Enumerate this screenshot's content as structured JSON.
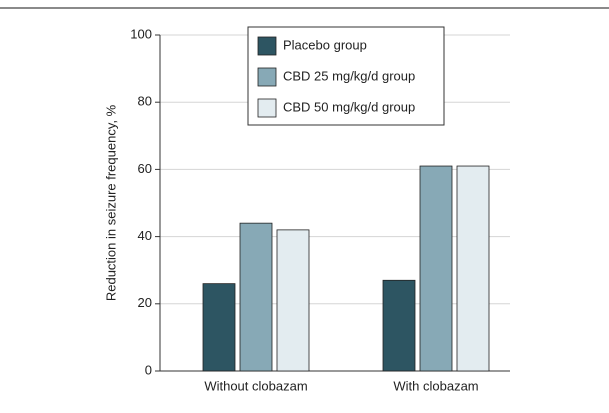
{
  "chart_data": {
    "type": "bar",
    "y_label": "Reduction in seizure frequency, %",
    "categories": [
      "Without clobazam",
      "With clobazam"
    ],
    "series": [
      {
        "name": "Placebo group",
        "color": "#2d5562",
        "values": [
          26,
          27
        ]
      },
      {
        "name": "CBD 25 mg/kg/d group",
        "color": "#87a9b6",
        "values": [
          44,
          61
        ]
      },
      {
        "name": "CBD 50 mg/kg/d group",
        "color": "#e3ecf0",
        "values": [
          42,
          61
        ]
      }
    ],
    "ylim": [
      0,
      100
    ],
    "yticks": [
      0,
      20,
      40,
      60,
      80,
      100
    ],
    "grid": true,
    "legend": "top"
  }
}
